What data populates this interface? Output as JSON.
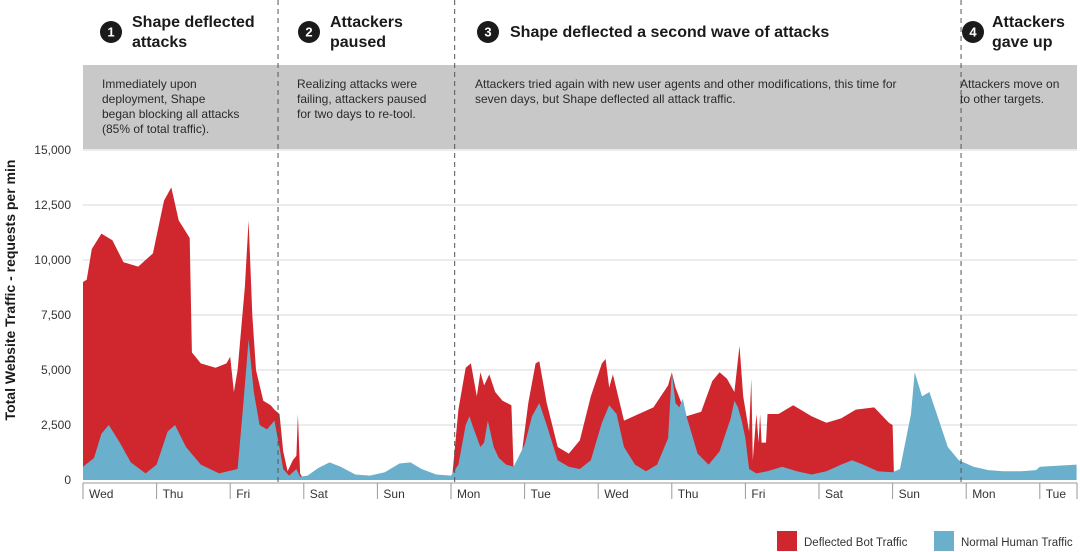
{
  "chart_data": {
    "type": "area",
    "ylabel": "Total Website Traffic - requests per min",
    "y_ticks": [
      "15,000",
      "12,500",
      "10,000",
      "7,500",
      "5,000",
      "2,500",
      "0"
    ],
    "ylim": [
      0,
      15000
    ],
    "grid": true,
    "day_labels": [
      "Wed",
      "Thu",
      "Fri",
      "Sat",
      "Sun",
      "Mon",
      "Tue",
      "Wed",
      "Thu",
      "Fri",
      "Sat",
      "Sun",
      "Mon",
      "Tue"
    ],
    "colors": {
      "bot": "#d0262d",
      "human": "#6aafcb",
      "band": "#c8c8c8"
    },
    "phases": [
      {
        "num": "1",
        "title": [
          "Shape deflected",
          "attacks"
        ],
        "desc": [
          "Immediately upon",
          "deployment, Shape",
          "began blocking all attacks",
          "(85% of total traffic)."
        ]
      },
      {
        "num": "2",
        "title": [
          "Attackers",
          "paused"
        ],
        "desc": [
          "Realizing attacks were",
          "failing, attackers paused",
          "for two days to re-tool."
        ]
      },
      {
        "num": "3",
        "title": [
          "Shape deflected a second wave of attacks"
        ],
        "desc": [
          "Attackers tried again with new user agents and other modifications, this time for",
          "seven days, but Shape deflected all attack traffic."
        ]
      },
      {
        "num": "4",
        "title": [
          "Attackers",
          "gave up"
        ],
        "desc": [
          "Attackers move on",
          "to other targets."
        ]
      }
    ],
    "legend": [
      {
        "label": "Deflected Bot Traffic",
        "color": "#d0262d"
      },
      {
        "label": "Normal Human Traffic",
        "color": "#6aafcb"
      }
    ],
    "series": [
      {
        "name": "Deflected Bot Traffic",
        "points": [
          [
            0,
            9000
          ],
          [
            0.05,
            9100
          ],
          [
            0.12,
            10500
          ],
          [
            0.25,
            11200
          ],
          [
            0.4,
            10900
          ],
          [
            0.55,
            9900
          ],
          [
            0.75,
            9700
          ],
          [
            0.95,
            10300
          ],
          [
            1.1,
            12700
          ],
          [
            1.2,
            13300
          ],
          [
            1.3,
            11800
          ],
          [
            1.45,
            11000
          ],
          [
            1.48,
            5800
          ],
          [
            1.6,
            5300
          ],
          [
            1.8,
            5100
          ],
          [
            1.95,
            5300
          ],
          [
            2.0,
            5600
          ],
          [
            2.05,
            4000
          ],
          [
            2.1,
            5000
          ],
          [
            2.2,
            8800
          ],
          [
            2.25,
            11800
          ],
          [
            2.3,
            7500
          ],
          [
            2.35,
            5000
          ],
          [
            2.45,
            3600
          ],
          [
            2.55,
            3400
          ],
          [
            2.6,
            3200
          ],
          [
            2.67,
            3000
          ],
          [
            2.72,
            1300
          ],
          [
            2.78,
            400
          ],
          [
            2.85,
            900
          ],
          [
            2.9,
            1100
          ],
          [
            2.92,
            3000
          ],
          [
            2.95,
            300
          ],
          [
            3.0,
            0
          ],
          [
            5.0,
            0
          ],
          [
            5.02,
            300
          ],
          [
            5.1,
            3200
          ],
          [
            5.2,
            5100
          ],
          [
            5.27,
            5300
          ],
          [
            5.35,
            3800
          ],
          [
            5.4,
            4900
          ],
          [
            5.45,
            4300
          ],
          [
            5.52,
            4800
          ],
          [
            5.6,
            4000
          ],
          [
            5.7,
            3600
          ],
          [
            5.82,
            3400
          ],
          [
            5.85,
            500
          ],
          [
            5.95,
            900
          ],
          [
            6.05,
            3500
          ],
          [
            6.15,
            5300
          ],
          [
            6.2,
            5400
          ],
          [
            6.3,
            3500
          ],
          [
            6.45,
            1500
          ],
          [
            6.6,
            1200
          ],
          [
            6.75,
            1800
          ],
          [
            6.9,
            3800
          ],
          [
            7.05,
            5300
          ],
          [
            7.1,
            5500
          ],
          [
            7.15,
            4200
          ],
          [
            7.2,
            4800
          ],
          [
            7.35,
            2700
          ],
          [
            7.55,
            3000
          ],
          [
            7.75,
            3300
          ],
          [
            7.95,
            4300
          ],
          [
            8.0,
            4900
          ],
          [
            8.05,
            4200
          ],
          [
            8.2,
            2900
          ],
          [
            8.4,
            3100
          ],
          [
            8.55,
            4500
          ],
          [
            8.65,
            4900
          ],
          [
            8.75,
            4600
          ],
          [
            8.85,
            4000
          ],
          [
            8.92,
            6100
          ],
          [
            8.97,
            3800
          ],
          [
            9.05,
            2200
          ],
          [
            9.08,
            4600
          ],
          [
            9.1,
            900
          ],
          [
            9.15,
            3000
          ],
          [
            9.18,
            1700
          ],
          [
            9.2,
            3000
          ],
          [
            9.22,
            1700
          ],
          [
            9.28,
            1700
          ],
          [
            9.3,
            3000
          ],
          [
            9.45,
            3000
          ],
          [
            9.65,
            3400
          ],
          [
            9.9,
            2900
          ],
          [
            10.1,
            2600
          ],
          [
            10.3,
            2800
          ],
          [
            10.5,
            3200
          ],
          [
            10.75,
            3300
          ],
          [
            10.95,
            2600
          ],
          [
            11.0,
            2500
          ],
          [
            11.02,
            0
          ],
          [
            13.5,
            0
          ]
        ]
      },
      {
        "name": "Normal Human Traffic",
        "points": [
          [
            0,
            600
          ],
          [
            0.15,
            1000
          ],
          [
            0.25,
            2100
          ],
          [
            0.35,
            2500
          ],
          [
            0.5,
            1700
          ],
          [
            0.65,
            800
          ],
          [
            0.85,
            300
          ],
          [
            1.0,
            700
          ],
          [
            1.15,
            2200
          ],
          [
            1.25,
            2500
          ],
          [
            1.4,
            1500
          ],
          [
            1.6,
            700
          ],
          [
            1.85,
            300
          ],
          [
            2.1,
            500
          ],
          [
            2.18,
            3500
          ],
          [
            2.25,
            6400
          ],
          [
            2.32,
            4000
          ],
          [
            2.4,
            2500
          ],
          [
            2.5,
            2300
          ],
          [
            2.6,
            2700
          ],
          [
            2.68,
            1300
          ],
          [
            2.72,
            500
          ],
          [
            2.8,
            200
          ],
          [
            2.9,
            500
          ],
          [
            2.95,
            150
          ],
          [
            3.05,
            200
          ],
          [
            3.2,
            550
          ],
          [
            3.35,
            800
          ],
          [
            3.5,
            600
          ],
          [
            3.7,
            250
          ],
          [
            3.9,
            200
          ],
          [
            4.1,
            350
          ],
          [
            4.3,
            750
          ],
          [
            4.45,
            800
          ],
          [
            4.6,
            500
          ],
          [
            4.8,
            250
          ],
          [
            5.0,
            200
          ],
          [
            5.1,
            700
          ],
          [
            5.2,
            2500
          ],
          [
            5.25,
            2900
          ],
          [
            5.3,
            2400
          ],
          [
            5.4,
            1500
          ],
          [
            5.45,
            1700
          ],
          [
            5.5,
            2700
          ],
          [
            5.58,
            1500
          ],
          [
            5.65,
            1000
          ],
          [
            5.75,
            700
          ],
          [
            5.85,
            600
          ],
          [
            6.0,
            1600
          ],
          [
            6.1,
            2900
          ],
          [
            6.2,
            3500
          ],
          [
            6.3,
            2500
          ],
          [
            6.45,
            900
          ],
          [
            6.6,
            600
          ],
          [
            6.75,
            500
          ],
          [
            6.9,
            900
          ],
          [
            7.05,
            2600
          ],
          [
            7.15,
            3400
          ],
          [
            7.25,
            3000
          ],
          [
            7.35,
            1500
          ],
          [
            7.5,
            700
          ],
          [
            7.65,
            400
          ],
          [
            7.8,
            700
          ],
          [
            7.95,
            1900
          ],
          [
            8.0,
            4900
          ],
          [
            8.05,
            3500
          ],
          [
            8.1,
            3300
          ],
          [
            8.15,
            3700
          ],
          [
            8.2,
            2900
          ],
          [
            8.35,
            1200
          ],
          [
            8.5,
            700
          ],
          [
            8.65,
            1300
          ],
          [
            8.8,
            2800
          ],
          [
            8.85,
            3600
          ],
          [
            8.9,
            3300
          ],
          [
            8.95,
            2700
          ],
          [
            9.0,
            1900
          ],
          [
            9.05,
            500
          ],
          [
            9.15,
            300
          ],
          [
            9.3,
            400
          ],
          [
            9.5,
            600
          ],
          [
            9.7,
            400
          ],
          [
            9.9,
            250
          ],
          [
            10.1,
            400
          ],
          [
            10.3,
            700
          ],
          [
            10.45,
            900
          ],
          [
            10.6,
            700
          ],
          [
            10.8,
            400
          ],
          [
            11.0,
            350
          ],
          [
            11.1,
            500
          ],
          [
            11.25,
            3000
          ],
          [
            11.3,
            4900
          ],
          [
            11.4,
            3800
          ],
          [
            11.5,
            4000
          ],
          [
            11.6,
            3000
          ],
          [
            11.75,
            1500
          ],
          [
            11.9,
            900
          ],
          [
            12.1,
            600
          ],
          [
            12.3,
            450
          ],
          [
            12.5,
            400
          ],
          [
            12.75,
            400
          ],
          [
            12.95,
            450
          ],
          [
            13.0,
            600
          ],
          [
            13.5,
            700
          ]
        ]
      }
    ]
  }
}
